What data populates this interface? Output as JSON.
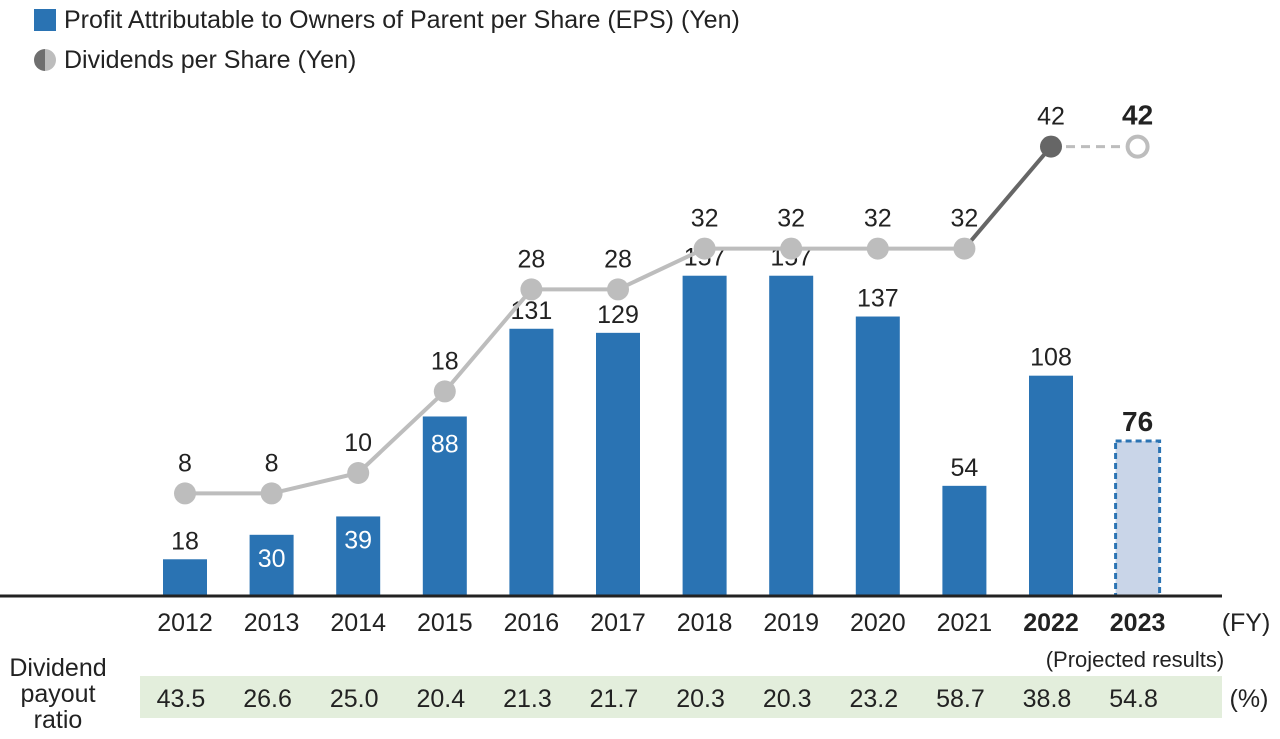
{
  "legend": {
    "eps_label": "Profit Attributable to Owners of Parent per Share (EPS) (Yen)",
    "dps_label": "Dividends per Share (Yen)"
  },
  "colors": {
    "eps_bar": "#2a73b3",
    "eps_projected_fill": "#c9d5e8",
    "dps_line": "#bdbdbd",
    "dps_line_recent": "#666666",
    "payout_band": "#e3eedc",
    "axis": "#222222"
  },
  "chart_data": {
    "type": "bar+line",
    "categories": [
      "2012",
      "2013",
      "2014",
      "2015",
      "2016",
      "2017",
      "2018",
      "2019",
      "2020",
      "2021",
      "2022",
      "2023"
    ],
    "x_unit": "(FY)",
    "bold_categories": [
      "2022",
      "2023"
    ],
    "projected_note": "(Projected results)",
    "series": [
      {
        "name": "Profit Attributable to Owners of Parent per Share (EPS) (Yen)",
        "type": "bar",
        "values": [
          18,
          30,
          39,
          88,
          131,
          129,
          157,
          157,
          137,
          54,
          108,
          76
        ],
        "projected": [
          false,
          false,
          false,
          false,
          false,
          false,
          false,
          false,
          false,
          false,
          false,
          true
        ]
      },
      {
        "name": "Dividends per Share (Yen)",
        "type": "line",
        "values": [
          8,
          8,
          10,
          18,
          28,
          28,
          32,
          32,
          32,
          32,
          42,
          42
        ],
        "projected": [
          false,
          false,
          false,
          false,
          false,
          false,
          false,
          false,
          false,
          false,
          false,
          true
        ]
      }
    ],
    "payout_ratio": {
      "label": "Dividend payout ratio",
      "label_lines": [
        "Dividend",
        "payout",
        "ratio"
      ],
      "values": [
        "43.5",
        "26.6",
        "25.0",
        "20.4",
        "21.3",
        "21.7",
        "20.3",
        "20.3",
        "23.2",
        "58.7",
        "38.8",
        "54.8"
      ],
      "unit": "(%)"
    }
  }
}
